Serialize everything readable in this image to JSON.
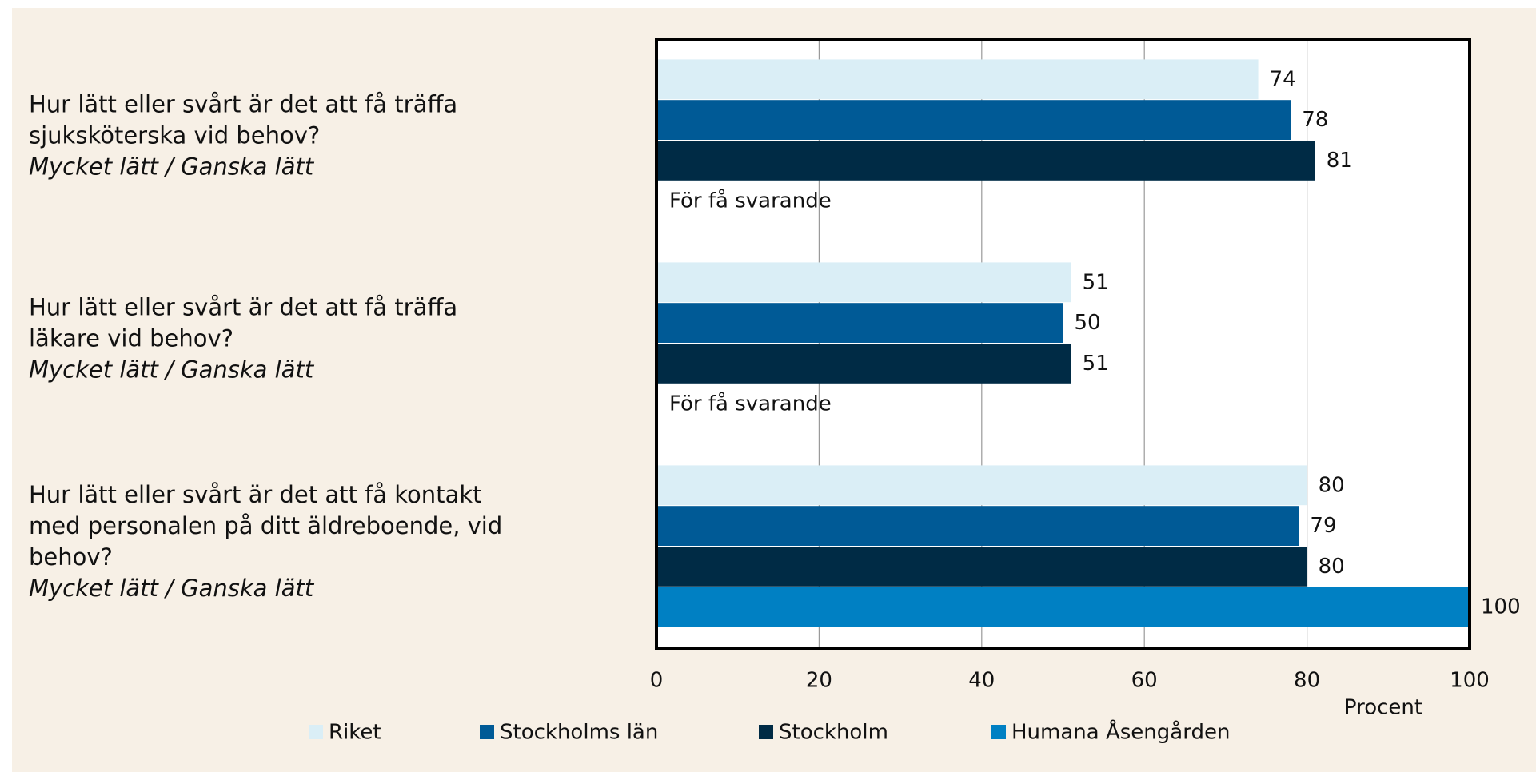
{
  "chart_data": {
    "type": "hbar",
    "categories": [
      "Hur lätt eller svårt är det att få träffa sjuksköterska vid behov?",
      "Hur lätt eller svårt är det att få träffa läkare vid behov?",
      "Hur lätt eller svårt är det att få kontakt med personalen på ditt äldreboende, vid behov?"
    ],
    "category_notes": [
      "Mycket lätt / Ganska lätt",
      "Mycket lätt / Ganska lätt",
      "Mycket lätt / Ganska lätt"
    ],
    "series": [
      {
        "name": "Riket",
        "color": "#daeef6",
        "values": [
          74,
          51,
          80
        ]
      },
      {
        "name": "Stockholms län",
        "color": "#005a96",
        "values": [
          78,
          50,
          79
        ]
      },
      {
        "name": "Stockholm",
        "color": "#002b45",
        "values": [
          81,
          51,
          80
        ]
      },
      {
        "name": "Humana Åsengården",
        "color": "#0080c3",
        "values": [
          null,
          null,
          100
        ]
      }
    ],
    "missing_label": "För få svarande",
    "xlabel": "Procent",
    "xlim": [
      0,
      100
    ],
    "xticks": [
      0,
      20,
      40,
      60,
      80,
      100
    ],
    "grid": true
  }
}
